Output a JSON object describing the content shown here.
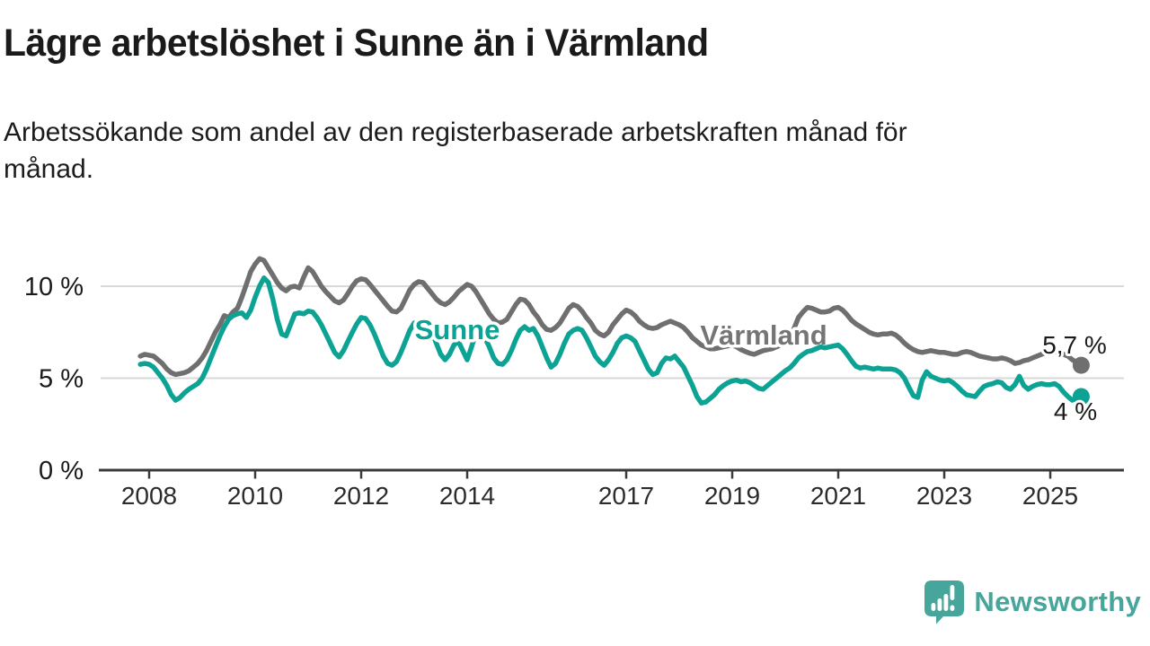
{
  "header": {
    "title": "Lägre arbetslöshet i Sunne än i Värmland",
    "subtitle": "Arbetssökande som andel av den registerbaserade arbetskraften månad för månad."
  },
  "chart_data": {
    "type": "line",
    "title": "Lägre arbetslöshet i Sunne än i Värmland",
    "x_unit": "year (monthly data)",
    "y_unit": "percent of registered labour force",
    "x_start": 2007.8333,
    "x_step": 0.0833333,
    "x_axis": {
      "ticks": [
        {
          "year": 2008,
          "label": "2008"
        },
        {
          "year": 2010,
          "label": "2010"
        },
        {
          "year": 2012,
          "label": "2012"
        },
        {
          "year": 2014,
          "label": "2014"
        },
        {
          "year": 2017,
          "label": "2017"
        },
        {
          "year": 2019,
          "label": "2019"
        },
        {
          "year": 2021,
          "label": "2021"
        },
        {
          "year": 2023,
          "label": "2023"
        },
        {
          "year": 2025,
          "label": "2025"
        }
      ]
    },
    "y_axis": {
      "range": [
        0,
        12
      ],
      "grid": true,
      "ticks": [
        {
          "value": 0,
          "label": "0 %"
        },
        {
          "value": 5,
          "label": "5 %"
        },
        {
          "value": 10,
          "label": "10 %"
        }
      ]
    },
    "style": {
      "grid_color": "#d9d9d9",
      "axis_color": "#3a3a3a",
      "axis_label_color": "#2b2b2b",
      "value_label_color": "#1a1a1a",
      "line_width": 5.5
    },
    "series": [
      {
        "id": "varmland",
        "name": "Värmland",
        "color": "#6f6f6f",
        "label_color": "#757575",
        "end_label": "5,7 %",
        "end_value": 5.7,
        "values": [
          6.2,
          6.3,
          6.25,
          6.2,
          6.0,
          5.8,
          5.5,
          5.3,
          5.2,
          5.25,
          5.3,
          5.4,
          5.6,
          5.8,
          6.1,
          6.5,
          7.0,
          7.5,
          7.9,
          8.4,
          8.3,
          8.6,
          8.8,
          9.4,
          10.1,
          10.8,
          11.2,
          11.5,
          11.4,
          11.0,
          10.6,
          10.2,
          9.9,
          9.75,
          9.95,
          10.0,
          9.9,
          10.5,
          11.0,
          10.8,
          10.4,
          10.0,
          9.7,
          9.45,
          9.2,
          9.1,
          9.25,
          9.6,
          10.0,
          10.3,
          10.4,
          10.35,
          10.1,
          9.8,
          9.5,
          9.2,
          8.9,
          8.65,
          8.6,
          8.8,
          9.3,
          9.8,
          10.1,
          10.25,
          10.2,
          9.9,
          9.6,
          9.3,
          9.1,
          9.0,
          9.15,
          9.4,
          9.7,
          9.9,
          10.1,
          10.0,
          9.7,
          9.3,
          8.9,
          8.5,
          8.2,
          8.0,
          8.05,
          8.2,
          8.6,
          9.0,
          9.3,
          9.25,
          9.0,
          8.6,
          8.3,
          7.9,
          7.65,
          7.6,
          7.75,
          8.0,
          8.4,
          8.8,
          9.0,
          8.9,
          8.65,
          8.3,
          8.0,
          7.6,
          7.4,
          7.3,
          7.5,
          7.9,
          8.2,
          8.5,
          8.7,
          8.6,
          8.4,
          8.1,
          7.9,
          7.75,
          7.7,
          7.75,
          7.9,
          8.0,
          8.1,
          8.0,
          7.9,
          7.75,
          7.5,
          7.2,
          7.0,
          6.8,
          6.7,
          6.6,
          6.6,
          6.65,
          6.7,
          6.75,
          6.8,
          6.7,
          6.55,
          6.45,
          6.35,
          6.3,
          6.4,
          6.5,
          6.55,
          6.6,
          6.7,
          6.8,
          7.0,
          7.2,
          7.7,
          8.3,
          8.6,
          8.85,
          8.8,
          8.7,
          8.6,
          8.6,
          8.65,
          8.8,
          8.85,
          8.7,
          8.45,
          8.15,
          7.95,
          7.8,
          7.65,
          7.5,
          7.4,
          7.35,
          7.4,
          7.4,
          7.45,
          7.35,
          7.15,
          6.9,
          6.7,
          6.55,
          6.45,
          6.4,
          6.45,
          6.5,
          6.45,
          6.4,
          6.4,
          6.35,
          6.3,
          6.3,
          6.4,
          6.45,
          6.4,
          6.3,
          6.2,
          6.15,
          6.1,
          6.05,
          6.05,
          6.1,
          6.05,
          5.95,
          5.8,
          5.85,
          5.95,
          6.0,
          6.1,
          6.2,
          6.3,
          6.4,
          6.45,
          6.45,
          6.4,
          6.3,
          6.2,
          6.0,
          5.85,
          5.7
        ]
      },
      {
        "id": "sunne",
        "name": "Sunne",
        "color": "#0ca394",
        "label_color": "#0ca394",
        "end_label": "4 %",
        "end_value": 4.0,
        "values": [
          5.75,
          5.8,
          5.75,
          5.6,
          5.3,
          5.0,
          4.6,
          4.1,
          3.8,
          3.95,
          4.2,
          4.4,
          4.55,
          4.7,
          5.0,
          5.5,
          6.1,
          6.7,
          7.3,
          7.8,
          8.2,
          8.4,
          8.5,
          8.55,
          8.3,
          8.7,
          9.4,
          10.0,
          10.45,
          10.2,
          9.3,
          8.2,
          7.4,
          7.3,
          7.9,
          8.5,
          8.55,
          8.5,
          8.65,
          8.6,
          8.3,
          7.9,
          7.4,
          6.9,
          6.4,
          6.15,
          6.5,
          7.0,
          7.5,
          7.95,
          8.3,
          8.25,
          7.9,
          7.4,
          6.8,
          6.2,
          5.8,
          5.7,
          5.9,
          6.4,
          7.0,
          7.6,
          8.0,
          8.05,
          7.95,
          8.0,
          7.5,
          6.9,
          6.3,
          6.0,
          6.3,
          6.8,
          7.0,
          6.5,
          6.0,
          6.7,
          7.5,
          7.6,
          7.2,
          6.7,
          6.1,
          5.8,
          5.75,
          6.0,
          6.5,
          7.1,
          7.6,
          7.8,
          7.6,
          7.7,
          7.3,
          6.7,
          6.1,
          5.6,
          5.8,
          6.3,
          6.9,
          7.4,
          7.6,
          7.7,
          7.6,
          7.2,
          6.7,
          6.2,
          5.9,
          5.7,
          6.0,
          6.4,
          6.9,
          7.2,
          7.3,
          7.2,
          7.0,
          6.5,
          6.0,
          5.5,
          5.2,
          5.3,
          5.8,
          6.1,
          6.05,
          6.2,
          5.9,
          5.6,
          5.1,
          4.6,
          4.0,
          3.65,
          3.7,
          3.9,
          4.1,
          4.4,
          4.6,
          4.75,
          4.85,
          4.9,
          4.8,
          4.85,
          4.75,
          4.6,
          4.45,
          4.4,
          4.6,
          4.8,
          5.0,
          5.2,
          5.4,
          5.55,
          5.8,
          6.1,
          6.3,
          6.45,
          6.5,
          6.6,
          6.7,
          6.65,
          6.7,
          6.75,
          6.8,
          6.6,
          6.3,
          5.95,
          5.65,
          5.55,
          5.6,
          5.55,
          5.5,
          5.55,
          5.5,
          5.5,
          5.5,
          5.45,
          5.3,
          5.0,
          4.5,
          4.05,
          3.95,
          4.9,
          5.35,
          5.1,
          5.0,
          4.9,
          4.85,
          4.9,
          4.75,
          4.55,
          4.3,
          4.1,
          4.05,
          4.0,
          4.3,
          4.55,
          4.65,
          4.7,
          4.8,
          4.75,
          4.5,
          4.4,
          4.65,
          5.1,
          4.6,
          4.4,
          4.55,
          4.65,
          4.7,
          4.65,
          4.65,
          4.7,
          4.55,
          4.25,
          4.0,
          3.8,
          3.95,
          4.0
        ]
      }
    ]
  },
  "branding": {
    "logo_text": "Newsworthy",
    "logo_icon": "newsworthy-bar-chart-speech-bubble-icon",
    "color": "#47a69b"
  }
}
